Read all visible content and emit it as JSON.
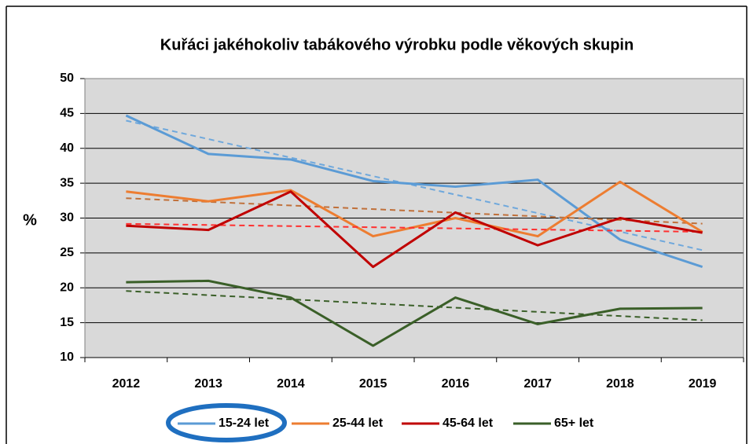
{
  "chart_data": {
    "type": "line",
    "title": "Kuřáci jakéhokoliv tabákového výrobku podle věkových skupin",
    "y_label": "%",
    "categories": [
      "2012",
      "2013",
      "2014",
      "2015",
      "2016",
      "2017",
      "2018",
      "2019"
    ],
    "series": [
      {
        "name": "15-24 let",
        "color": "#5b9bd5",
        "trend_color": "#6fa8dc",
        "values": [
          44.7,
          39.2,
          38.4,
          35.3,
          34.5,
          35.5,
          26.9,
          23.0
        ]
      },
      {
        "name": "25-44 let",
        "color": "#ed7d31",
        "trend_color": "#c0703a",
        "values": [
          33.8,
          32.4,
          34.0,
          27.4,
          30.0,
          27.4,
          35.2,
          28.0
        ]
      },
      {
        "name": "45-64 let",
        "color": "#c00000",
        "trend_color": "#ff3030",
        "values": [
          28.9,
          28.3,
          33.8,
          23.0,
          30.8,
          26.1,
          30.0,
          27.9
        ]
      },
      {
        "name": "65+ let",
        "color": "#3a5f28",
        "trend_color": "#3a5f28",
        "values": [
          20.8,
          21.0,
          18.6,
          11.7,
          18.6,
          14.8,
          17.0,
          17.1
        ]
      }
    ],
    "trendline": "linear",
    "ylim": [
      10,
      50
    ],
    "yticks": [
      10,
      15,
      20,
      25,
      30,
      35,
      40,
      45,
      50
    ],
    "grid": true,
    "legend": "bottom"
  }
}
